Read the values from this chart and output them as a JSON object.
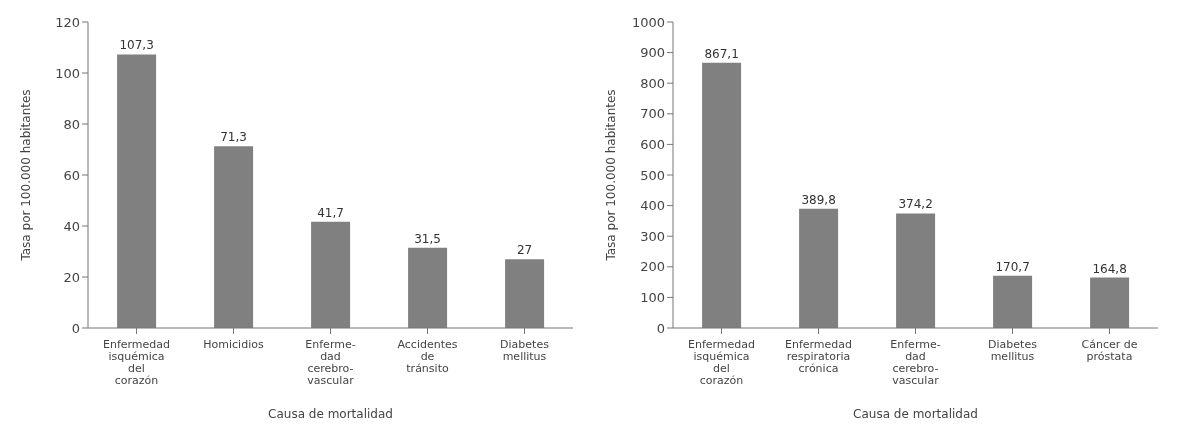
{
  "chart_data": [
    {
      "type": "bar",
      "xlabel": "Causa de mortalidad",
      "ylabel": "Tasa por 100.000 habitantes",
      "categories": [
        "Enfermedad\nisquémica\ndel\ncorazón",
        "Homicidios",
        "Enferme-\ndad\ncerebro-\nvascular",
        "Accidentes\nde\ntránsito",
        "Diabetes\nmellitus"
      ],
      "values": [
        107.3,
        71.3,
        41.7,
        31.5,
        27
      ],
      "value_labels": [
        "107,3",
        "71,3",
        "41,7",
        "31,5",
        "27"
      ],
      "color": "#808080",
      "ylim": [
        0,
        120
      ],
      "yticks": [
        0,
        20,
        40,
        60,
        80,
        100,
        120
      ],
      "grid": false,
      "legend": false
    },
    {
      "type": "bar",
      "xlabel": "Causa de mortalidad",
      "ylabel": "Tasa por 100.000 habitantes",
      "categories": [
        "Enfermedad\nisquémica\ndel\ncorazón",
        "Enfermedad\nrespiratoria\ncrónica",
        "Enferme-\ndad\ncerebro-\nvascular",
        "Diabetes\nmellitus",
        "Cáncer de\npróstata"
      ],
      "values": [
        867.1,
        389.8,
        374.2,
        170.7,
        164.8
      ],
      "value_labels": [
        "867,1",
        "389,8",
        "374,2",
        "170,7",
        "164,8"
      ],
      "color": "#808080",
      "ylim": [
        0,
        1000
      ],
      "yticks": [
        0,
        100,
        200,
        300,
        400,
        500,
        600,
        700,
        800,
        900,
        1000
      ],
      "grid": false,
      "legend": false
    }
  ]
}
